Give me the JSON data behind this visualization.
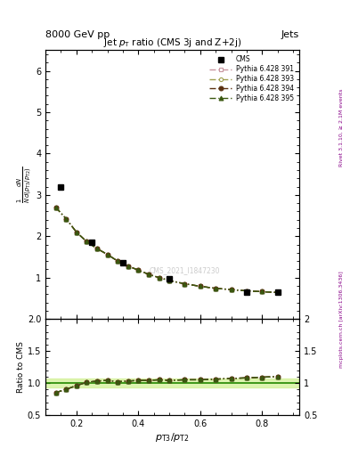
{
  "title": "Jet $p_{\\mathrm{T}}$ ratio (CMS 3j and Z+2j)",
  "header_left": "8000 GeV pp",
  "header_right": "Jets",
  "xlabel": "$p_{\\mathrm{T3}}/p_{\\mathrm{T2}}$",
  "ylabel_main": "$\\frac{1}{N}\\frac{dN}{d(p_{\\mathrm{T3}}/p_{\\mathrm{T2}})}$",
  "ylabel_ratio": "Ratio to CMS",
  "watermark": "CMS_2021_I1847230",
  "right_label_top": "Rivet 3.1.10, ≥ 2.1M events",
  "right_label_bot": "mcplots.cern.ch [arXiv:1306.3436]",
  "cms_x": [
    0.15,
    0.25,
    0.35,
    0.5,
    0.75,
    0.85
  ],
  "cms_y": [
    3.18,
    1.85,
    1.36,
    0.97,
    0.65,
    0.65
  ],
  "py391_x": [
    0.133,
    0.167,
    0.2,
    0.233,
    0.267,
    0.3,
    0.333,
    0.367,
    0.4,
    0.433,
    0.467,
    0.5,
    0.55,
    0.6,
    0.65,
    0.7,
    0.75,
    0.8,
    0.85
  ],
  "py391_y": [
    2.7,
    2.42,
    2.1,
    1.87,
    1.7,
    1.56,
    1.4,
    1.28,
    1.18,
    1.08,
    1.0,
    0.93,
    0.85,
    0.79,
    0.74,
    0.71,
    0.68,
    0.66,
    0.64
  ],
  "py393_x": [
    0.133,
    0.167,
    0.2,
    0.233,
    0.267,
    0.3,
    0.333,
    0.367,
    0.4,
    0.433,
    0.467,
    0.5,
    0.55,
    0.6,
    0.65,
    0.7,
    0.75,
    0.8,
    0.85
  ],
  "py393_y": [
    2.7,
    2.42,
    2.1,
    1.87,
    1.7,
    1.56,
    1.4,
    1.28,
    1.18,
    1.08,
    1.0,
    0.93,
    0.85,
    0.79,
    0.74,
    0.71,
    0.68,
    0.66,
    0.64
  ],
  "py394_x": [
    0.133,
    0.167,
    0.2,
    0.233,
    0.267,
    0.3,
    0.333,
    0.367,
    0.4,
    0.433,
    0.467,
    0.5,
    0.55,
    0.6,
    0.65,
    0.7,
    0.75,
    0.8,
    0.85
  ],
  "py394_y": [
    2.7,
    2.42,
    2.1,
    1.87,
    1.7,
    1.56,
    1.4,
    1.28,
    1.18,
    1.08,
    1.0,
    0.93,
    0.85,
    0.79,
    0.74,
    0.71,
    0.68,
    0.66,
    0.64
  ],
  "py395_x": [
    0.133,
    0.167,
    0.2,
    0.233,
    0.267,
    0.3,
    0.333,
    0.367,
    0.4,
    0.433,
    0.467,
    0.5,
    0.55,
    0.6,
    0.65,
    0.7,
    0.75,
    0.8,
    0.85
  ],
  "py395_y": [
    2.7,
    2.42,
    2.1,
    1.87,
    1.7,
    1.56,
    1.4,
    1.28,
    1.18,
    1.08,
    1.0,
    0.93,
    0.85,
    0.79,
    0.74,
    0.71,
    0.68,
    0.66,
    0.64
  ],
  "ratio_x": [
    0.133,
    0.167,
    0.2,
    0.233,
    0.267,
    0.3,
    0.333,
    0.367,
    0.4,
    0.433,
    0.467,
    0.5,
    0.55,
    0.6,
    0.65,
    0.7,
    0.75,
    0.8,
    0.85
  ],
  "ratio391_y": [
    0.85,
    0.9,
    0.96,
    1.01,
    1.03,
    1.04,
    1.02,
    1.03,
    1.04,
    1.04,
    1.05,
    1.04,
    1.05,
    1.05,
    1.06,
    1.07,
    1.08,
    1.09,
    1.1
  ],
  "ratio393_y": [
    0.85,
    0.9,
    0.96,
    1.01,
    1.03,
    1.04,
    1.02,
    1.03,
    1.04,
    1.04,
    1.05,
    1.04,
    1.05,
    1.05,
    1.06,
    1.07,
    1.08,
    1.09,
    1.1
  ],
  "ratio394_y": [
    0.85,
    0.9,
    0.96,
    1.01,
    1.03,
    1.04,
    1.02,
    1.03,
    1.04,
    1.04,
    1.05,
    1.04,
    1.05,
    1.05,
    1.06,
    1.07,
    1.08,
    1.09,
    1.1
  ],
  "ratio395_y": [
    0.85,
    0.9,
    0.96,
    1.01,
    1.03,
    1.04,
    1.02,
    1.03,
    1.04,
    1.04,
    1.05,
    1.04,
    1.05,
    1.05,
    1.06,
    1.07,
    1.08,
    1.09,
    1.1
  ],
  "color391": "#c896a0",
  "color393": "#a0a050",
  "color394": "#5a3010",
  "color395": "#3a5810",
  "cms_color": "#000000",
  "band_color": "#d0f090",
  "band_lo": 0.93,
  "band_hi": 1.07,
  "ylim_main": [
    0,
    6.5
  ],
  "ylim_ratio": [
    0.5,
    2.0
  ],
  "xlim": [
    0.1,
    0.92
  ],
  "xticks": [
    0.2,
    0.4,
    0.6,
    0.8
  ],
  "yticks_main": [
    1,
    2,
    3,
    4,
    5,
    6
  ],
  "yticks_ratio": [
    0.5,
    1.0,
    1.5,
    2.0
  ]
}
